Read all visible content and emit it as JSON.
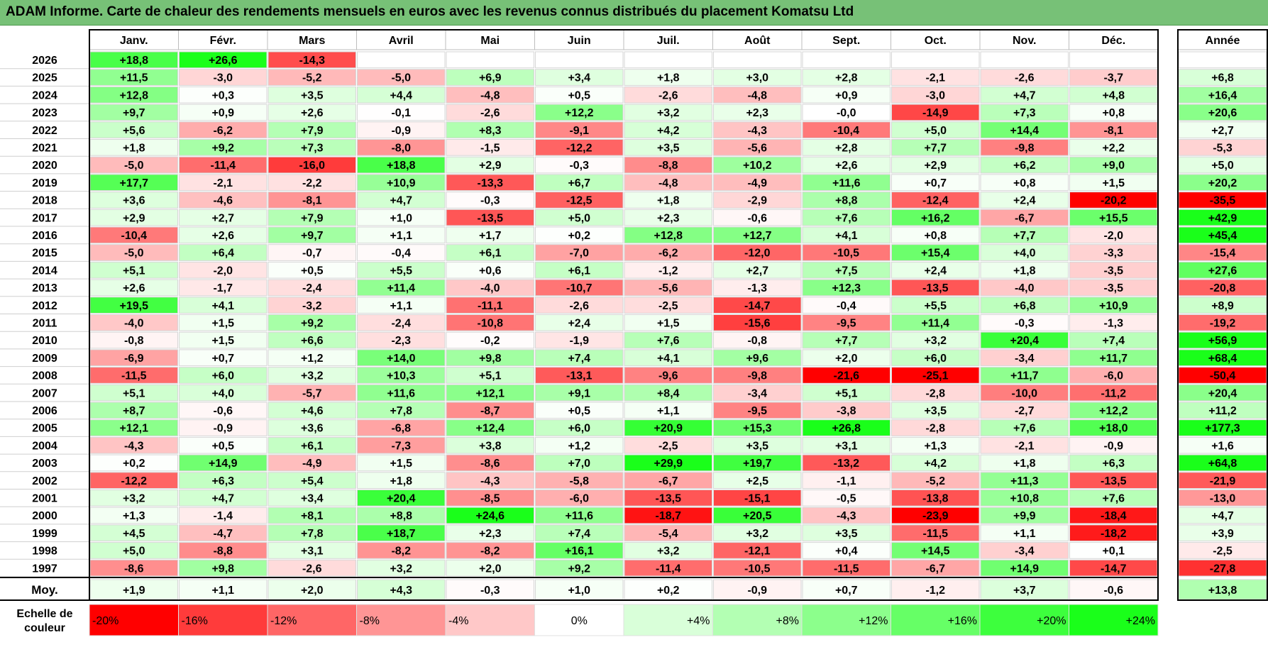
{
  "title": "ADAM Informe. Carte de chaleur des rendements mensuels en euros avec les revenus connus distribués du placement Komatsu Ltd",
  "chart_data": {
    "type": "heatmap",
    "title": "ADAM Informe. Carte de chaleur des rendements mensuels en euros avec les revenus connus distribués du placement Komatsu Ltd",
    "months": [
      "Janv.",
      "Févr.",
      "Mars",
      "Avril",
      "Mai",
      "Juin",
      "Juil.",
      "Août",
      "Sept.",
      "Oct.",
      "Nov.",
      "Déc."
    ],
    "annual_header": "Année",
    "average_label": "Moy.",
    "rows": [
      {
        "year": "2026",
        "values": [
          "+18,8",
          "+26,6",
          "-14,3",
          "",
          "",
          "",
          "",
          "",
          "",
          "",
          "",
          ""
        ],
        "annual": ""
      },
      {
        "year": "2025",
        "values": [
          "+11,5",
          "-3,0",
          "-5,2",
          "-5,0",
          "+6,9",
          "+3,4",
          "+1,8",
          "+3,0",
          "+2,8",
          "-2,1",
          "-2,6",
          "-3,7"
        ],
        "annual": "+6,8"
      },
      {
        "year": "2024",
        "values": [
          "+12,8",
          "+0,3",
          "+3,5",
          "+4,4",
          "-4,8",
          "+0,5",
          "-2,6",
          "-4,8",
          "+0,9",
          "-3,0",
          "+4,7",
          "+4,8"
        ],
        "annual": "+16,4"
      },
      {
        "year": "2023",
        "values": [
          "+9,7",
          "+0,9",
          "+2,6",
          "-0,1",
          "-2,6",
          "+12,2",
          "+3,2",
          "+2,3",
          "-0,0",
          "-14,9",
          "+7,3",
          "+0,8"
        ],
        "annual": "+20,6"
      },
      {
        "year": "2022",
        "values": [
          "+5,6",
          "-6,2",
          "+7,9",
          "-0,9",
          "+8,3",
          "-9,1",
          "+4,2",
          "-4,3",
          "-10,4",
          "+5,0",
          "+14,4",
          "-8,1"
        ],
        "annual": "+2,7"
      },
      {
        "year": "2021",
        "values": [
          "+1,8",
          "+9,2",
          "+7,3",
          "-8,0",
          "-1,5",
          "-12,2",
          "+3,5",
          "-5,6",
          "+2,8",
          "+7,7",
          "-9,8",
          "+2,2"
        ],
        "annual": "-5,3"
      },
      {
        "year": "2020",
        "values": [
          "-5,0",
          "-11,4",
          "-16,0",
          "+18,8",
          "+2,9",
          "-0,3",
          "-8,8",
          "+10,2",
          "+2,6",
          "+2,9",
          "+6,2",
          "+9,0"
        ],
        "annual": "+5,0"
      },
      {
        "year": "2019",
        "values": [
          "+17,7",
          "-2,1",
          "-2,2",
          "+10,9",
          "-13,3",
          "+6,7",
          "-4,8",
          "-4,9",
          "+11,6",
          "+0,7",
          "+0,8",
          "+1,5"
        ],
        "annual": "+20,2"
      },
      {
        "year": "2018",
        "values": [
          "+3,6",
          "-4,6",
          "-8,1",
          "+4,7",
          "-0,3",
          "-12,5",
          "+1,8",
          "-2,9",
          "+8,8",
          "-12,4",
          "+2,4",
          "-20,2"
        ],
        "annual": "-35,5"
      },
      {
        "year": "2017",
        "values": [
          "+2,9",
          "+2,7",
          "+7,9",
          "+1,0",
          "-13,5",
          "+5,0",
          "+2,3",
          "-0,6",
          "+7,6",
          "+16,2",
          "-6,7",
          "+15,5"
        ],
        "annual": "+42,9"
      },
      {
        "year": "2016",
        "values": [
          "-10,4",
          "+2,6",
          "+9,7",
          "+1,1",
          "+1,7",
          "+0,2",
          "+12,8",
          "+12,7",
          "+4,1",
          "+0,8",
          "+7,7",
          "-2,0"
        ],
        "annual": "+45,4"
      },
      {
        "year": "2015",
        "values": [
          "-5,0",
          "+6,4",
          "-0,7",
          "-0,4",
          "+6,1",
          "-7,0",
          "-6,2",
          "-12,0",
          "-10,5",
          "+15,4",
          "+4,0",
          "-3,3"
        ],
        "annual": "-15,4"
      },
      {
        "year": "2014",
        "values": [
          "+5,1",
          "-2,0",
          "+0,5",
          "+5,5",
          "+0,6",
          "+6,1",
          "-1,2",
          "+2,7",
          "+7,5",
          "+2,4",
          "+1,8",
          "-3,5"
        ],
        "annual": "+27,6"
      },
      {
        "year": "2013",
        "values": [
          "+2,6",
          "-1,7",
          "-2,4",
          "+11,4",
          "-4,0",
          "-10,7",
          "-5,6",
          "-1,3",
          "+12,3",
          "-13,5",
          "-4,0",
          "-3,5"
        ],
        "annual": "-20,8"
      },
      {
        "year": "2012",
        "values": [
          "+19,5",
          "+4,1",
          "-3,2",
          "+1,1",
          "-11,1",
          "-2,6",
          "-2,5",
          "-14,7",
          "-0,4",
          "+5,5",
          "+6,8",
          "+10,9"
        ],
        "annual": "+8,9"
      },
      {
        "year": "2011",
        "values": [
          "-4,0",
          "+1,5",
          "+9,2",
          "-2,4",
          "-10,8",
          "+2,4",
          "+1,5",
          "-15,6",
          "-9,5",
          "+11,4",
          "-0,3",
          "-1,3"
        ],
        "annual": "-19,2"
      },
      {
        "year": "2010",
        "values": [
          "-0,8",
          "+1,5",
          "+6,6",
          "-2,3",
          "-0,2",
          "-1,9",
          "+7,6",
          "-0,8",
          "+7,7",
          "+3,2",
          "+20,4",
          "+7,4"
        ],
        "annual": "+56,9"
      },
      {
        "year": "2009",
        "values": [
          "-6,9",
          "+0,7",
          "+1,2",
          "+14,0",
          "+9,8",
          "+7,4",
          "+4,1",
          "+9,6",
          "+2,0",
          "+6,0",
          "-3,4",
          "+11,7"
        ],
        "annual": "+68,4"
      },
      {
        "year": "2008",
        "values": [
          "-11,5",
          "+6,0",
          "+3,2",
          "+10,3",
          "+5,1",
          "-13,1",
          "-9,6",
          "-9,8",
          "-21,6",
          "-25,1",
          "+11,7",
          "-6,0"
        ],
        "annual": "-50,4"
      },
      {
        "year": "2007",
        "values": [
          "+5,1",
          "+4,0",
          "-5,7",
          "+11,6",
          "+12,1",
          "+9,1",
          "+8,4",
          "-3,4",
          "+5,1",
          "-2,8",
          "-10,0",
          "-11,2"
        ],
        "annual": "+20,4"
      },
      {
        "year": "2006",
        "values": [
          "+8,7",
          "-0,6",
          "+4,6",
          "+7,8",
          "-8,7",
          "+0,5",
          "+1,1",
          "-9,5",
          "-3,8",
          "+3,5",
          "-2,7",
          "+12,2"
        ],
        "annual": "+11,2"
      },
      {
        "year": "2005",
        "values": [
          "+12,1",
          "-0,9",
          "+3,6",
          "-6,8",
          "+12,4",
          "+6,0",
          "+20,9",
          "+15,3",
          "+26,8",
          "-2,8",
          "+7,6",
          "+18,0"
        ],
        "annual": "+177,3"
      },
      {
        "year": "2004",
        "values": [
          "-4,3",
          "+0,5",
          "+6,1",
          "-7,3",
          "+3,8",
          "+1,2",
          "-2,5",
          "+3,5",
          "+3,1",
          "+1,3",
          "-2,1",
          "-0,9"
        ],
        "annual": "+1,6"
      },
      {
        "year": "2003",
        "values": [
          "+0,2",
          "+14,9",
          "-4,9",
          "+1,5",
          "-8,6",
          "+7,0",
          "+29,9",
          "+19,7",
          "-13,2",
          "+4,2",
          "+1,8",
          "+6,3"
        ],
        "annual": "+64,8"
      },
      {
        "year": "2002",
        "values": [
          "-12,2",
          "+6,3",
          "+5,4",
          "+1,8",
          "-4,3",
          "-5,8",
          "-6,7",
          "+2,5",
          "-1,1",
          "-5,2",
          "+11,3",
          "-13,5"
        ],
        "annual": "-21,9"
      },
      {
        "year": "2001",
        "values": [
          "+3,2",
          "+4,7",
          "+3,4",
          "+20,4",
          "-8,5",
          "-6,0",
          "-13,5",
          "-15,1",
          "-0,5",
          "-13,8",
          "+10,8",
          "+7,6"
        ],
        "annual": "-13,0"
      },
      {
        "year": "2000",
        "values": [
          "+1,3",
          "-1,4",
          "+8,1",
          "+8,8",
          "+24,6",
          "+11,6",
          "-18,7",
          "+20,5",
          "-4,3",
          "-23,9",
          "+9,9",
          "-18,4"
        ],
        "annual": "+4,7"
      },
      {
        "year": "1999",
        "values": [
          "+4,5",
          "-4,7",
          "+7,8",
          "+18,7",
          "+2,3",
          "+7,4",
          "-5,4",
          "+3,2",
          "+3,5",
          "-11,5",
          "+1,1",
          "-18,2"
        ],
        "annual": "+3,9"
      },
      {
        "year": "1998",
        "values": [
          "+5,0",
          "-8,8",
          "+3,1",
          "-8,2",
          "-8,2",
          "+16,1",
          "+3,2",
          "-12,1",
          "+0,4",
          "+14,5",
          "-3,4",
          "+0,1"
        ],
        "annual": "-2,5"
      },
      {
        "year": "1997",
        "values": [
          "-8,6",
          "+9,8",
          "-2,6",
          "+3,2",
          "+2,0",
          "+9,2",
          "-11,4",
          "-10,5",
          "-11,5",
          "-6,7",
          "+14,9",
          "-14,7"
        ],
        "annual": "-27,8"
      }
    ],
    "averages": [
      "+1,9",
      "+1,1",
      "+2,0",
      "+4,3",
      "-0,3",
      "+1,0",
      "+0,2",
      "-0,9",
      "+0,7",
      "-1,2",
      "+3,7",
      "-0,6"
    ],
    "average_annual": "+13,8",
    "scale_label_line1": "Echelle de",
    "scale_label_line2": "couleur",
    "scale": [
      {
        "label": "-20%",
        "value": -20,
        "color": "#ff0000"
      },
      {
        "label": "-16%",
        "value": -16,
        "color": "#ff3b3b"
      },
      {
        "label": "-12%",
        "value": -12,
        "color": "#ff6666"
      },
      {
        "label": "-8%",
        "value": -8,
        "color": "#ff9595"
      },
      {
        "label": "-4%",
        "value": -4,
        "color": "#ffc8c8"
      },
      {
        "label": "0%",
        "value": 0,
        "color": "#ffffff"
      },
      {
        "label": "+4%",
        "value": 4,
        "color": "#d9ffd9"
      },
      {
        "label": "+8%",
        "value": 8,
        "color": "#b3ffb3"
      },
      {
        "label": "+12%",
        "value": 12,
        "color": "#8cff8c"
      },
      {
        "label": "+16%",
        "value": 16,
        "color": "#66ff66"
      },
      {
        "label": "+20%",
        "value": 20,
        "color": "#3dff3d"
      },
      {
        "label": "+24%",
        "value": 24,
        "color": "#1aff1a"
      }
    ]
  }
}
